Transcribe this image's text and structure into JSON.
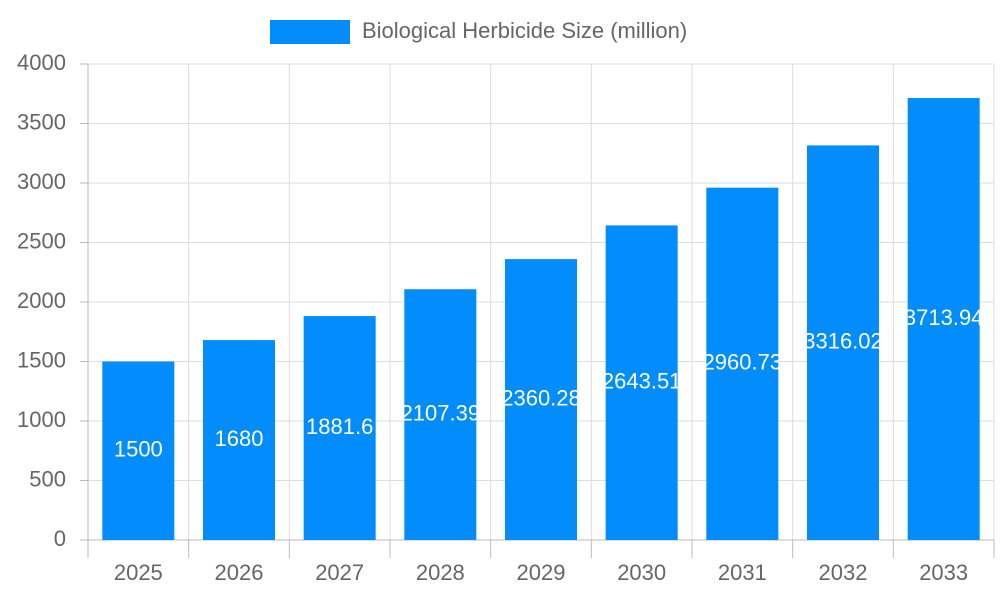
{
  "chart_data": {
    "type": "bar",
    "categories": [
      "2025",
      "2026",
      "2027",
      "2028",
      "2029",
      "2030",
      "2031",
      "2032",
      "2033"
    ],
    "series": [
      {
        "name": "Biological Herbicide Size (million)",
        "color": "#038cfc",
        "values": [
          1500,
          1680,
          1881.6,
          2107.39,
          2360.28,
          2643.51,
          2960.73,
          3316.02,
          3713.94
        ]
      }
    ],
    "ylim": [
      0,
      4000
    ],
    "yticks": [
      0,
      500,
      1000,
      1500,
      2000,
      2500,
      3000,
      3500,
      4000
    ],
    "grid": true,
    "legend": "top"
  }
}
